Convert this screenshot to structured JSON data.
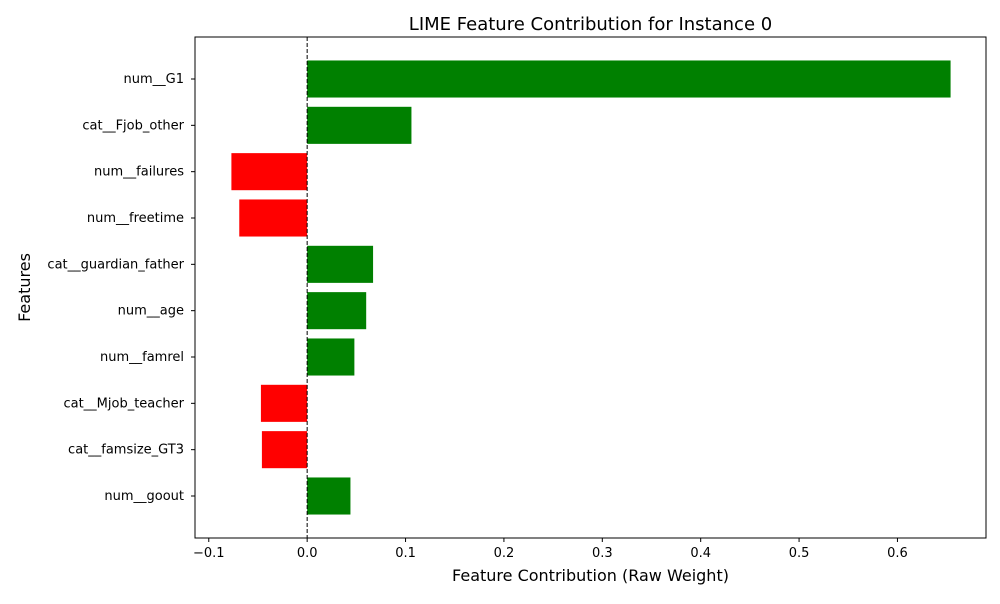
{
  "chart_data": {
    "type": "bar",
    "orientation": "horizontal",
    "title": "LIME Feature Contribution for Instance 0",
    "xlabel": "Feature Contribution (Raw Weight)",
    "ylabel": "Features",
    "categories": [
      "num__G1",
      "cat__Fjob_other",
      "num__failures",
      "num__freetime",
      "cat__guardian_father",
      "num__age",
      "num__famrel",
      "cat__Mjob_teacher",
      "cat__famsize_GT3",
      "num__goout"
    ],
    "values": [
      0.654,
      0.106,
      -0.077,
      -0.069,
      0.067,
      0.06,
      0.048,
      -0.047,
      -0.046,
      0.044
    ],
    "xlim": [
      -0.114,
      0.69
    ],
    "xticks": [
      -0.1,
      0.0,
      0.1,
      0.2,
      0.3,
      0.4,
      0.5,
      0.6
    ],
    "xtick_labels": [
      "−0.1",
      "0.0",
      "0.1",
      "0.2",
      "0.3",
      "0.4",
      "0.5",
      "0.6"
    ],
    "zero_line": {
      "style": "dashed",
      "color": "#000000"
    },
    "colors": {
      "positive": "#008000",
      "negative": "#ff0000"
    },
    "grid": false,
    "legend": "none"
  }
}
